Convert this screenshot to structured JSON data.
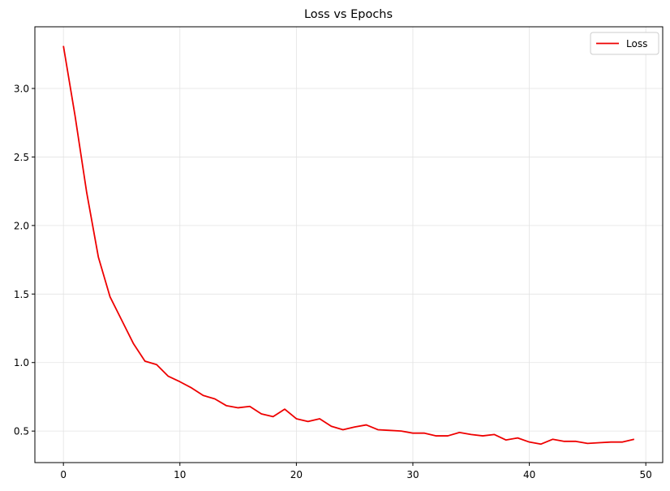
{
  "chart_data": {
    "type": "line",
    "title": "Loss vs Epochs",
    "xlabel": "",
    "ylabel": "",
    "xlim": [
      -2.45,
      51.45
    ],
    "ylim": [
      0.27,
      3.45
    ],
    "xticks": [
      0,
      10,
      20,
      30,
      40,
      50
    ],
    "yticks": [
      0.5,
      1.0,
      1.5,
      2.0,
      2.5,
      3.0
    ],
    "xtick_labels": [
      "0",
      "10",
      "20",
      "30",
      "40",
      "50"
    ],
    "ytick_labels": [
      "0.5",
      "1.0",
      "1.5",
      "2.0",
      "2.5",
      "3.0"
    ],
    "grid": true,
    "legend_position": "top-right",
    "series": [
      {
        "name": "Loss",
        "color": "#ee0000",
        "x": [
          0,
          1,
          2,
          3,
          4,
          5,
          6,
          7,
          8,
          9,
          10,
          11,
          12,
          13,
          14,
          15,
          16,
          17,
          18,
          19,
          20,
          21,
          22,
          23,
          24,
          25,
          26,
          27,
          28,
          29,
          30,
          31,
          32,
          33,
          34,
          35,
          36,
          37,
          38,
          39,
          40,
          41,
          42,
          43,
          44,
          45,
          46,
          47,
          48,
          49
        ],
        "y": [
          3.31,
          2.8,
          2.24,
          1.77,
          1.48,
          1.31,
          1.14,
          1.01,
          0.985,
          0.9,
          0.86,
          0.815,
          0.76,
          0.735,
          0.685,
          0.67,
          0.68,
          0.625,
          0.605,
          0.66,
          0.59,
          0.57,
          0.59,
          0.535,
          0.51,
          0.53,
          0.545,
          0.51,
          0.505,
          0.5,
          0.485,
          0.485,
          0.465,
          0.465,
          0.49,
          0.475,
          0.465,
          0.475,
          0.435,
          0.45,
          0.42,
          0.405,
          0.44,
          0.425,
          0.425,
          0.41,
          0.415,
          0.42,
          0.42,
          0.44
        ]
      }
    ]
  }
}
